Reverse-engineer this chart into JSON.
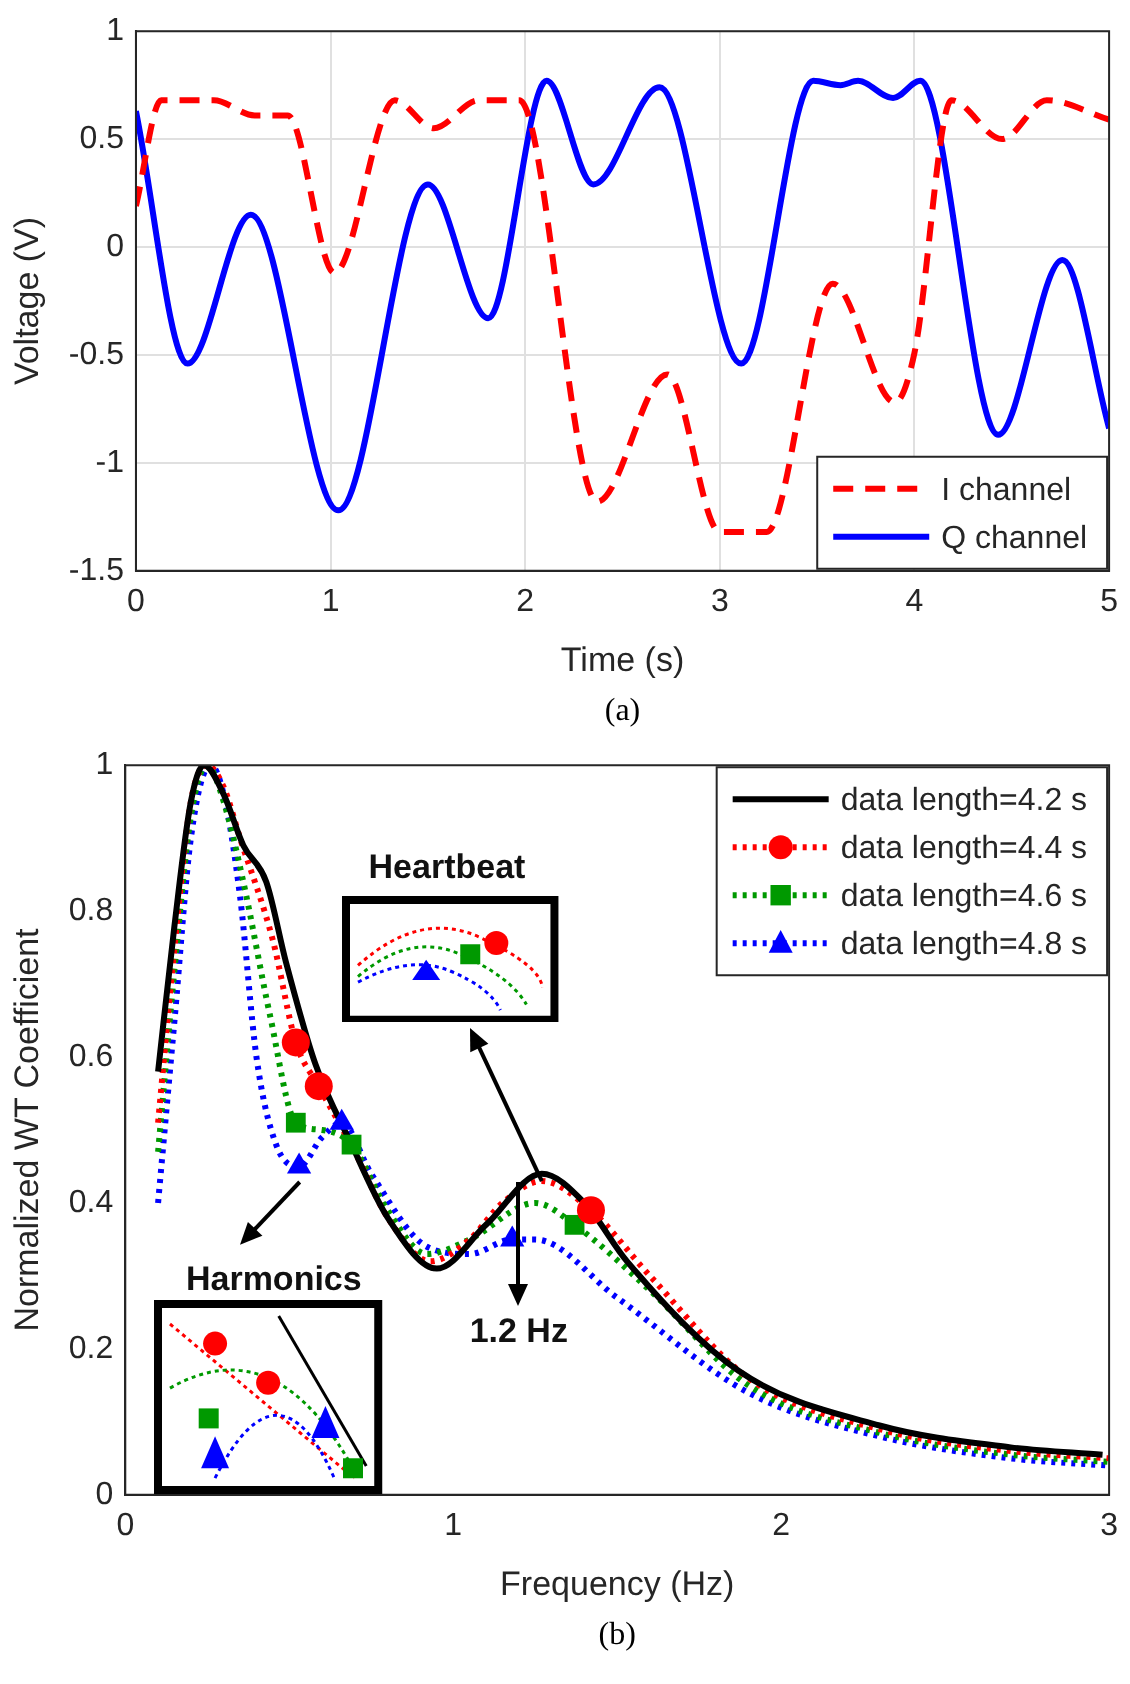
{
  "chart_data": [
    {
      "type": "line",
      "xlabel": "Time (s)",
      "ylabel": "Voltage (V)",
      "xlim": [
        0,
        5
      ],
      "ylim": [
        -1.5,
        1
      ],
      "xticks": [
        0,
        1,
        2,
        3,
        4,
        5
      ],
      "yticks": [
        -1.5,
        -1,
        -0.5,
        0,
        0.5,
        1
      ],
      "grid": true,
      "legend": "bottom right",
      "marker": "none",
      "annotations": [
        "(a)"
      ],
      "series": [
        {
          "name": "I channel",
          "color": "#ff0000",
          "line_style": "dashed",
          "x": [
            0,
            0.13,
            0.4,
            0.61,
            0.78,
            1.02,
            1.33,
            1.53,
            1.76,
            1.97,
            2.37,
            2.73,
            3.0,
            3.24,
            3.58,
            3.9,
            4.0,
            4.19,
            4.45,
            4.68,
            5.0
          ],
          "values": [
            0.19,
            0.68,
            0.68,
            0.61,
            0.61,
            -0.12,
            0.68,
            0.55,
            0.68,
            0.68,
            -1.18,
            -0.59,
            -1.32,
            -1.32,
            -0.17,
            -0.72,
            -0.49,
            0.68,
            0.5,
            0.68,
            0.59
          ]
        },
        {
          "name": "Q channel",
          "color": "#0000ff",
          "line_style": "solid",
          "x": [
            0,
            0.265,
            0.59,
            1.04,
            1.5,
            1.81,
            2.11,
            2.35,
            2.69,
            3.11,
            3.48,
            3.62,
            3.71,
            3.89,
            4.03,
            4.43,
            4.76,
            5.0
          ],
          "values": [
            0.63,
            -0.54,
            0.15,
            -1.22,
            0.29,
            -0.33,
            0.77,
            0.29,
            0.74,
            -0.54,
            0.77,
            0.75,
            0.77,
            0.69,
            0.77,
            -0.87,
            -0.06,
            -0.84
          ]
        }
      ]
    },
    {
      "type": "line",
      "xlabel": "Frequency (Hz)",
      "ylabel": "Normalized WT Coefficient",
      "xlim": [
        0,
        3
      ],
      "ylim": [
        0,
        1
      ],
      "xticks": [
        0,
        1,
        2,
        3
      ],
      "yticks": [
        0,
        0.2,
        0.4,
        0.6,
        0.8,
        1
      ],
      "grid": false,
      "legend": "top right",
      "annotations": [
        "Heartbeat",
        {
          "text": "Harmonics",
          "x": 0.53,
          "y": 0.43
        },
        {
          "text": "1.2 Hz",
          "x": 1.2,
          "y": 0.43
        },
        "(b)"
      ],
      "series": [
        {
          "name": "data length=4.2 s",
          "color": "#000000",
          "line_style": "solid",
          "marker": "none",
          "x": [
            0.1,
            0.15,
            0.2,
            0.24,
            0.3,
            0.36,
            0.43,
            0.49,
            0.58,
            0.69,
            0.8,
            0.95,
            1.1,
            1.27,
            1.4,
            1.53,
            1.87,
            2.3,
            2.7,
            2.98
          ],
          "values": [
            0.58,
            0.78,
            0.95,
            1.0,
            0.96,
            0.89,
            0.84,
            0.73,
            0.59,
            0.48,
            0.38,
            0.31,
            0.37,
            0.44,
            0.4,
            0.32,
            0.17,
            0.095,
            0.065,
            0.055
          ]
        },
        {
          "name": "data length=4.4 s",
          "color": "#ff0000",
          "line_style": "dotted",
          "x": [
            0.1,
            0.15,
            0.2,
            0.25,
            0.3,
            0.35,
            0.45,
            0.52,
            0.59,
            0.7,
            0.8,
            0.93,
            1.05,
            1.15,
            1.27,
            1.42,
            1.6,
            1.9,
            2.3,
            2.7,
            3.0
          ],
          "values": [
            0.51,
            0.75,
            0.95,
            1.0,
            0.97,
            0.9,
            0.76,
            0.62,
            0.56,
            0.47,
            0.38,
            0.32,
            0.35,
            0.4,
            0.43,
            0.39,
            0.3,
            0.16,
            0.09,
            0.06,
            0.05
          ]
        },
        {
          "name": "data length=4.6 s",
          "color": "#009900",
          "line_style": "dotted",
          "x": [
            0.1,
            0.15,
            0.2,
            0.25,
            0.3,
            0.36,
            0.44,
            0.52,
            0.6,
            0.69,
            0.8,
            0.92,
            1.05,
            1.25,
            1.37,
            1.6,
            1.9,
            2.3,
            2.7,
            3.0
          ],
          "values": [
            0.47,
            0.72,
            0.93,
            1.0,
            0.95,
            0.84,
            0.66,
            0.51,
            0.5,
            0.48,
            0.39,
            0.33,
            0.35,
            0.4,
            0.37,
            0.28,
            0.15,
            0.085,
            0.055,
            0.045
          ]
        },
        {
          "name": "data length=4.8 s",
          "color": "#0000ff",
          "line_style": "dotted",
          "x": [
            0.1,
            0.15,
            0.2,
            0.26,
            0.3,
            0.35,
            0.4,
            0.46,
            0.53,
            0.6,
            0.66,
            0.75,
            0.92,
            1.05,
            1.18,
            1.25,
            1.5,
            1.9,
            2.3,
            2.7,
            3.0
          ],
          "values": [
            0.4,
            0.65,
            0.9,
            1.0,
            0.96,
            0.82,
            0.6,
            0.48,
            0.45,
            0.49,
            0.51,
            0.44,
            0.34,
            0.33,
            0.35,
            0.35,
            0.27,
            0.14,
            0.08,
            0.05,
            0.04
          ]
        },
        {
          "type": "scatter",
          "color": "#ff0000",
          "marker": "circle",
          "x": [
            0.52,
            0.59,
            1.42
          ],
          "values": [
            0.62,
            0.56,
            0.39
          ]
        },
        {
          "type": "scatter",
          "color": "#009900",
          "marker": "square",
          "x": [
            0.52,
            0.69,
            1.37
          ],
          "values": [
            0.51,
            0.48,
            0.37
          ]
        },
        {
          "type": "scatter",
          "color": "#0000ff",
          "marker": "triangle",
          "x": [
            0.53,
            0.66,
            1.18
          ],
          "values": [
            0.45,
            0.51,
            0.35
          ]
        }
      ]
    }
  ]
}
